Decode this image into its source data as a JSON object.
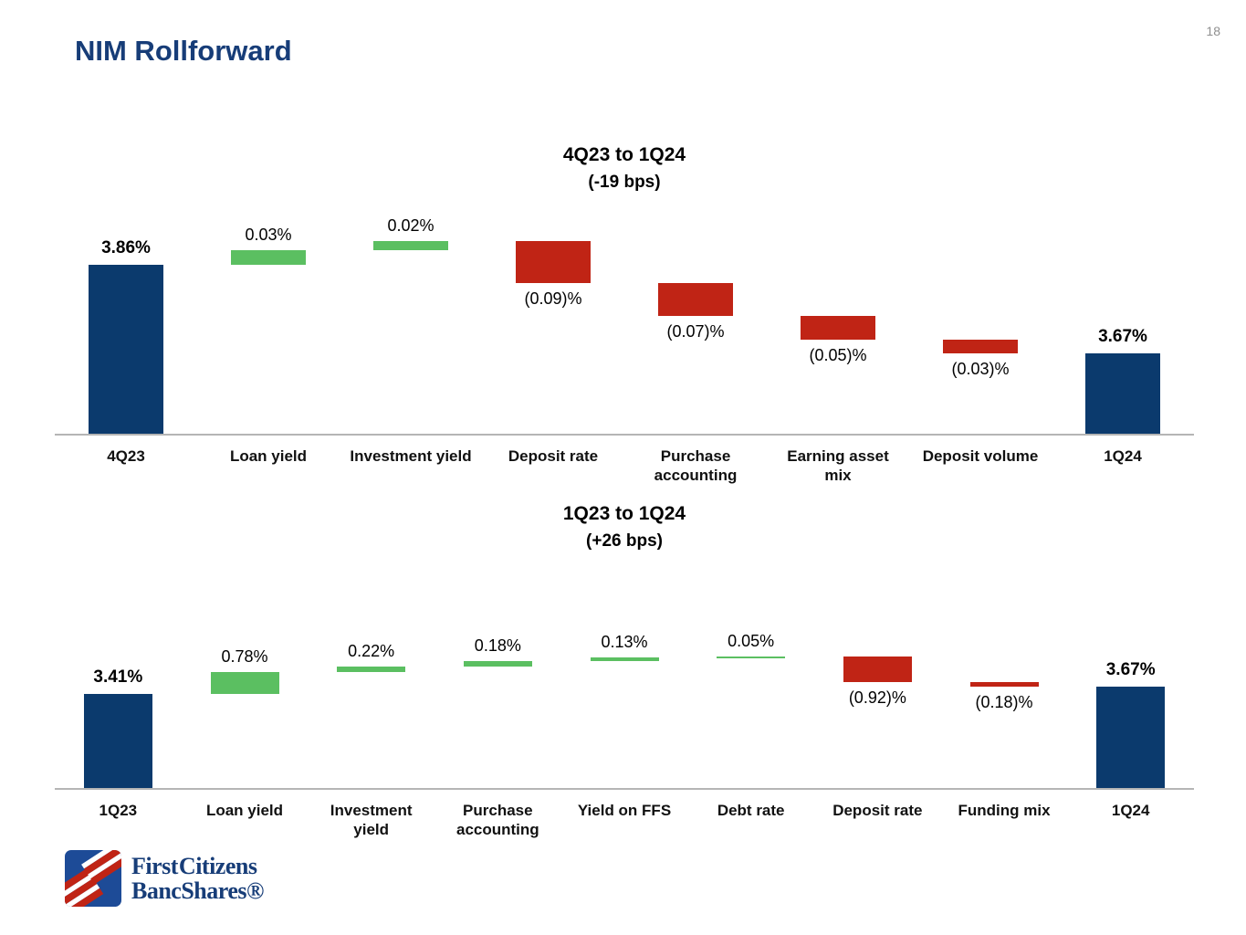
{
  "page": {
    "number": "18",
    "title": "NIM Rollforward"
  },
  "logo": {
    "line1": "First Citizens",
    "line2": "BancShares®"
  },
  "colors": {
    "navy": "#0b3a6d",
    "green": "#5bbf61",
    "red": "#c02415",
    "title_navy": "#173d78",
    "axis": "#b5b5b5",
    "logo_blue": "#1d4b97"
  },
  "chart_data": [
    {
      "type": "waterfall",
      "title": "4Q23 to 1Q24",
      "subtitle": "(-19 bps)",
      "ylim": [
        3.5,
        3.97
      ],
      "grid": false,
      "bars": [
        {
          "label": "4Q23",
          "kind": "total",
          "value": 3.86,
          "display": "3.86%"
        },
        {
          "label": "Loan yield",
          "kind": "increase",
          "value": 0.03,
          "display": "0.03%"
        },
        {
          "label": "Investment yield",
          "kind": "increase",
          "value": 0.02,
          "display": "0.02%"
        },
        {
          "label": "Deposit rate",
          "kind": "decrease",
          "value": -0.09,
          "display": "(0.09)%"
        },
        {
          "label": "Purchase\naccounting",
          "kind": "decrease",
          "value": -0.07,
          "display": "(0.07)%"
        },
        {
          "label": "Earning asset\nmix",
          "kind": "decrease",
          "value": -0.05,
          "display": "(0.05)%"
        },
        {
          "label": "Deposit volume",
          "kind": "decrease",
          "value": -0.03,
          "display": "(0.03)%"
        },
        {
          "label": "1Q24",
          "kind": "total",
          "value": 3.67,
          "display": "3.67%"
        }
      ]
    },
    {
      "type": "waterfall",
      "title": "1Q23 to 1Q24",
      "subtitle": "(+26 bps)",
      "ylim": [
        0,
        4.96
      ],
      "grid": false,
      "bars": [
        {
          "label": "1Q23",
          "kind": "total",
          "value": 3.41,
          "display": "3.41%"
        },
        {
          "label": "Loan yield",
          "kind": "increase",
          "value": 0.78,
          "display": "0.78%"
        },
        {
          "label": "Investment\nyield",
          "kind": "increase",
          "value": 0.22,
          "display": "0.22%"
        },
        {
          "label": "Purchase\naccounting",
          "kind": "increase",
          "value": 0.18,
          "display": "0.18%"
        },
        {
          "label": "Yield on FFS",
          "kind": "increase",
          "value": 0.13,
          "display": "0.13%"
        },
        {
          "label": "Debt rate",
          "kind": "increase",
          "value": 0.05,
          "display": "0.05%"
        },
        {
          "label": "Deposit rate",
          "kind": "decrease",
          "value": -0.92,
          "display": "(0.92)%"
        },
        {
          "label": "Funding mix",
          "kind": "decrease",
          "value": -0.18,
          "display": "(0.18)%"
        },
        {
          "label": "1Q24",
          "kind": "total",
          "value": 3.67,
          "display": "3.67%"
        }
      ]
    }
  ]
}
